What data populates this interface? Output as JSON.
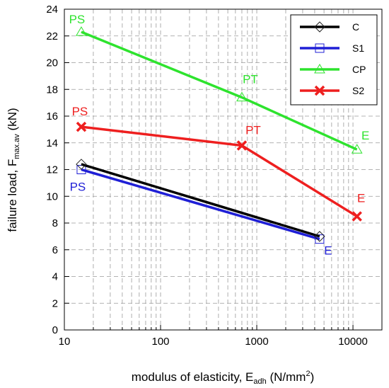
{
  "chart_data": {
    "type": "line",
    "x_scale": "log",
    "xlim": [
      10,
      20000
    ],
    "ylim": [
      0,
      24
    ],
    "grid": true,
    "legend_position": "top-right",
    "x_ticks": [
      10,
      100,
      1000,
      10000
    ],
    "x_tick_labels": [
      "10",
      "100",
      "1000",
      "10000"
    ],
    "y_ticks": [
      0,
      2,
      4,
      6,
      8,
      10,
      12,
      14,
      16,
      18,
      20,
      22,
      24
    ],
    "y_tick_labels": [
      "0",
      "2",
      "4",
      "6",
      "8",
      "10",
      "12",
      "14",
      "16",
      "18",
      "20",
      "22",
      "24"
    ],
    "xlabel": {
      "main": "modulus of elasticity, E",
      "sub": "adh",
      "tail": " (N/mm",
      "sup": "2",
      "end": ")"
    },
    "ylabel": {
      "main": "failure load, F",
      "sub": "max.av",
      "tail": " (kN)"
    },
    "series": [
      {
        "name": "C",
        "color": "#000000",
        "marker": "diamond",
        "x": [
          15,
          4500
        ],
        "y": [
          12.4,
          7.0
        ],
        "point_labels": [
          "",
          ""
        ]
      },
      {
        "name": "S1",
        "color": "#1f1fd6",
        "marker": "square",
        "x": [
          15,
          4500
        ],
        "y": [
          12.0,
          6.8
        ],
        "point_labels": [
          "PS",
          "E"
        ]
      },
      {
        "name": "CP",
        "color": "#2ee32e",
        "marker": "triangle",
        "x": [
          15,
          700,
          11000
        ],
        "y": [
          22.3,
          17.4,
          13.5
        ],
        "point_labels": [
          "PS",
          "PT",
          "E"
        ]
      },
      {
        "name": "S2",
        "color": "#ee1f1f",
        "marker": "x",
        "x": [
          15,
          700,
          11000
        ],
        "y": [
          15.2,
          13.8,
          8.5
        ],
        "point_labels": [
          "PS",
          "PT",
          "E"
        ]
      }
    ]
  }
}
